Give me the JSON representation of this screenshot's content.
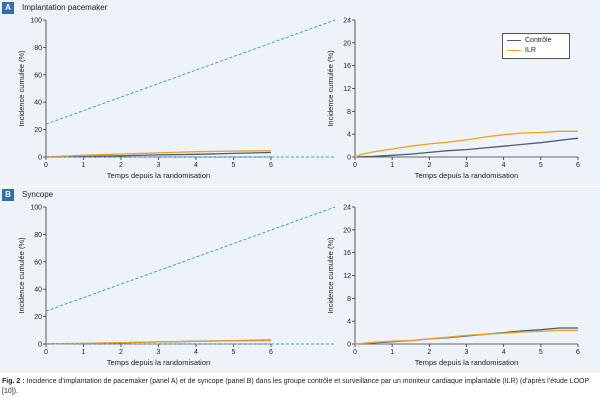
{
  "colors": {
    "panel_bg": "#edf3f9",
    "letter_bg": "#2f6fae",
    "controle": "#4a5d70",
    "ilr": "#f0a020",
    "connector": "#3aa0d8"
  },
  "panels": [
    {
      "letter": "A",
      "title": "Implantation pacemaker"
    },
    {
      "letter": "B",
      "title": "Syncope"
    }
  ],
  "legend": {
    "controle": "Contrôle",
    "ilr": "ILR"
  },
  "caption": {
    "bold": "Fig. 2 :",
    "text": " Incidence d’implantation de pacemaker (panel A) et de syncope (panel B) dans les groupe contrôle et surveillance par un moniteur cardiaque implantable (ILR) (d’après l’étude LOOP [10])."
  },
  "chart_data": [
    {
      "type": "line",
      "panel": "A",
      "view": "full",
      "xlabel": "Temps depuis la randomisation",
      "ylabel": "Incidence cumulée (%)",
      "xlim": [
        0,
        6
      ],
      "ylim": [
        0,
        100
      ],
      "xticks": [
        0,
        1,
        2,
        3,
        4,
        5,
        6
      ],
      "yticks": [
        0,
        20,
        40,
        60,
        80,
        100
      ],
      "series": [
        {
          "name": "Contrôle",
          "x": [
            0,
            1,
            2,
            3,
            4,
            5,
            6
          ],
          "y": [
            0,
            0.4,
            0.9,
            1.5,
            2.0,
            2.6,
            3.3
          ]
        },
        {
          "name": "ILR",
          "x": [
            0,
            1,
            2,
            3,
            4,
            5,
            6
          ],
          "y": [
            0,
            1.3,
            2.2,
            3.0,
            3.9,
            4.3,
            4.5
          ]
        }
      ]
    },
    {
      "type": "line",
      "panel": "A",
      "view": "zoom",
      "xlabel": "Temps depuis la randomisation",
      "ylabel": "Incidence cumulée (%)",
      "xlim": [
        0,
        6
      ],
      "ylim": [
        0,
        24
      ],
      "xticks": [
        0,
        1,
        2,
        3,
        4,
        5,
        6
      ],
      "yticks": [
        0,
        4,
        8,
        12,
        16,
        20,
        24
      ],
      "series": [
        {
          "name": "Contrôle",
          "x": [
            0,
            0.5,
            1,
            1.5,
            2,
            2.5,
            3,
            3.5,
            4,
            4.5,
            5,
            5.5,
            6
          ],
          "y": [
            0,
            0.1,
            0.3,
            0.5,
            0.8,
            1.1,
            1.3,
            1.6,
            1.9,
            2.2,
            2.5,
            2.9,
            3.3
          ]
        },
        {
          "name": "ILR",
          "x": [
            0,
            0.2,
            0.5,
            1,
            1.5,
            2,
            2.5,
            3,
            3.5,
            4,
            4.5,
            5,
            5.5,
            6
          ],
          "y": [
            0,
            0.5,
            0.9,
            1.4,
            1.9,
            2.3,
            2.6,
            3.0,
            3.5,
            3.9,
            4.2,
            4.3,
            4.5,
            4.5
          ]
        }
      ]
    },
    {
      "type": "line",
      "panel": "B",
      "view": "full",
      "xlabel": "Temps depuis la randomisation",
      "ylabel": "Incidence cumulée (%)",
      "xlim": [
        0,
        6
      ],
      "ylim": [
        0,
        100
      ],
      "xticks": [
        0,
        1,
        2,
        3,
        4,
        5,
        6
      ],
      "yticks": [
        0,
        20,
        40,
        60,
        80,
        100
      ],
      "series": [
        {
          "name": "Contrôle",
          "x": [
            0,
            1,
            2,
            3,
            4,
            5,
            6
          ],
          "y": [
            0,
            0.4,
            0.9,
            1.5,
            2.0,
            2.5,
            2.8
          ]
        },
        {
          "name": "ILR",
          "x": [
            0,
            1,
            2,
            3,
            4,
            5,
            6
          ],
          "y": [
            0,
            0.5,
            1.0,
            1.5,
            1.9,
            2.3,
            2.4
          ]
        }
      ]
    },
    {
      "type": "line",
      "panel": "B",
      "view": "zoom",
      "xlabel": "Temps depuis la randomisation",
      "ylabel": "Incidence cumulée (%)",
      "xlim": [
        0,
        6
      ],
      "ylim": [
        0,
        24
      ],
      "xticks": [
        0,
        1,
        2,
        3,
        4,
        5,
        6
      ],
      "yticks": [
        0,
        4,
        8,
        12,
        16,
        20,
        24
      ],
      "series": [
        {
          "name": "Contrôle",
          "x": [
            0,
            0.5,
            1,
            1.5,
            2,
            2.5,
            3,
            3.5,
            4,
            4.5,
            5,
            5.5,
            6
          ],
          "y": [
            0,
            0.2,
            0.4,
            0.6,
            0.9,
            1.1,
            1.4,
            1.7,
            2.0,
            2.3,
            2.5,
            2.8,
            2.8
          ]
        },
        {
          "name": "ILR",
          "x": [
            0,
            0.5,
            1,
            1.5,
            2,
            2.5,
            3,
            3.5,
            4,
            4.5,
            5,
            5.5,
            6
          ],
          "y": [
            0,
            0.3,
            0.5,
            0.6,
            0.9,
            1.2,
            1.5,
            1.7,
            1.9,
            2.1,
            2.2,
            2.4,
            2.4
          ]
        }
      ]
    }
  ]
}
